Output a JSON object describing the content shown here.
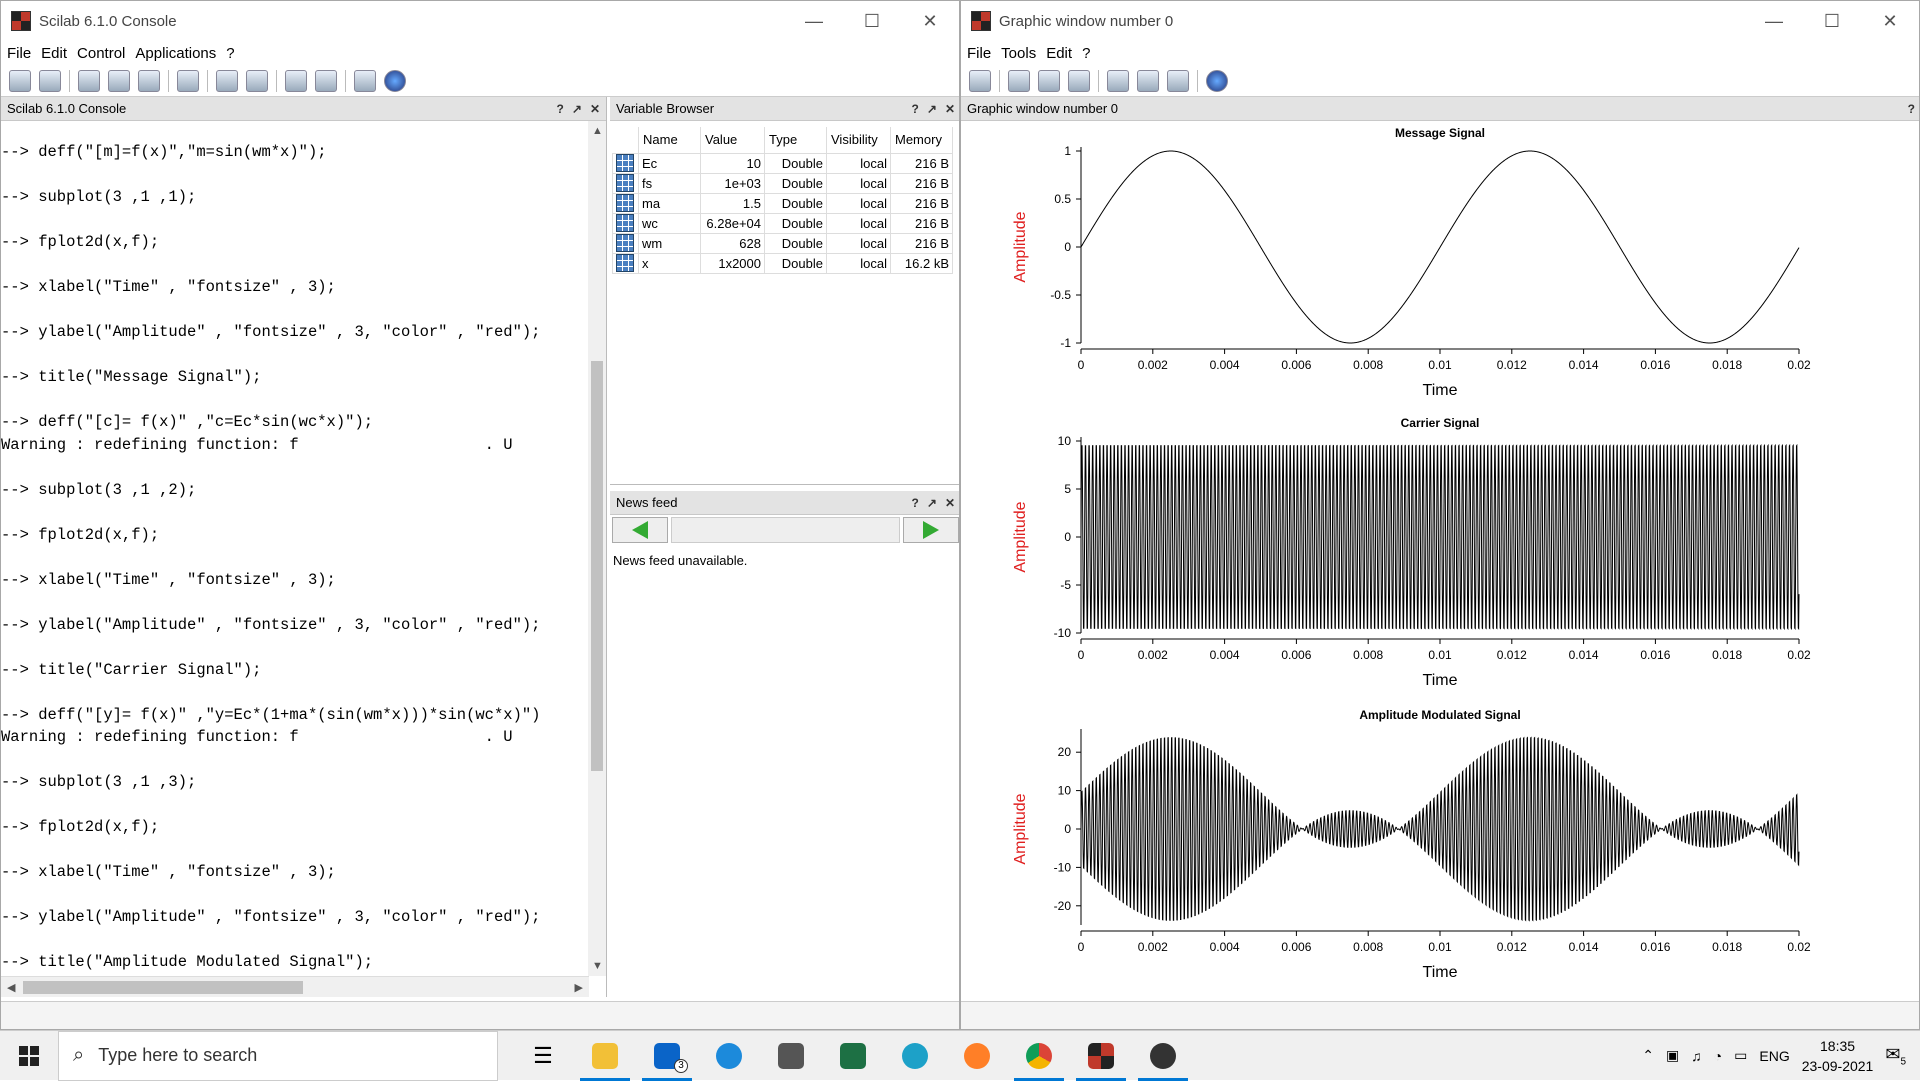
{
  "console_window": {
    "title": "Scilab 6.1.0 Console",
    "menu": [
      "File",
      "Edit",
      "Control",
      "Applications",
      "?"
    ],
    "panel_title": "Scilab 6.1.0 Console",
    "lines": [
      "--> deff(\"[m]=f(x)\",\"m=sin(wm*x)\");",
      "",
      "--> subplot(3 ,1 ,1);",
      "",
      "--> fplot2d(x,f);",
      "",
      "--> xlabel(\"Time\" , \"fontsize\" , 3);",
      "",
      "--> ylabel(\"Amplitude\" , \"fontsize\" , 3, \"color\" , \"red\");",
      "",
      "--> title(\"Message Signal\");",
      "",
      "--> deff(\"[c]= f(x)\" ,\"c=Ec*sin(wc*x)\");",
      "Warning : redefining function: f                    . U",
      "",
      "--> subplot(3 ,1 ,2);",
      "",
      "--> fplot2d(x,f);",
      "",
      "--> xlabel(\"Time\" , \"fontsize\" , 3);",
      "",
      "--> ylabel(\"Amplitude\" , \"fontsize\" , 3, \"color\" , \"red\");",
      "",
      "--> title(\"Carrier Signal\");",
      "",
      "--> deff(\"[y]= f(x)\" ,\"y=Ec*(1+ma*(sin(wm*x)))*sin(wc*x)\")",
      "Warning : redefining function: f                    . U",
      "",
      "--> subplot(3 ,1 ,3);",
      "",
      "--> fplot2d(x,f);",
      "",
      "--> xlabel(\"Time\" , \"fontsize\" , 3);",
      "",
      "--> ylabel(\"Amplitude\" , \"fontsize\" , 3, \"color\" , \"red\");",
      "",
      "--> title(\"Amplitude Modulated Signal\");"
    ]
  },
  "variable_browser": {
    "title": "Variable Browser",
    "columns": [
      "Name",
      "Value",
      "Type",
      "Visibility",
      "Memory"
    ],
    "rows": [
      {
        "name": "Ec",
        "value": "10",
        "type": "Double",
        "visibility": "local",
        "memory": "216 B"
      },
      {
        "name": "fs",
        "value": "1e+03",
        "type": "Double",
        "visibility": "local",
        "memory": "216 B"
      },
      {
        "name": "ma",
        "value": "1.5",
        "type": "Double",
        "visibility": "local",
        "memory": "216 B"
      },
      {
        "name": "wc",
        "value": "6.28e+04",
        "type": "Double",
        "visibility": "local",
        "memory": "216 B"
      },
      {
        "name": "wm",
        "value": "628",
        "type": "Double",
        "visibility": "local",
        "memory": "216 B"
      },
      {
        "name": "x",
        "value": "1x2000",
        "type": "Double",
        "visibility": "local",
        "memory": "16.2 kB"
      }
    ]
  },
  "news_feed": {
    "title": "News feed",
    "message": "News feed unavailable."
  },
  "graphic_window": {
    "title": "Graphic window number 0",
    "menu": [
      "File",
      "Tools",
      "Edit",
      "?"
    ],
    "panel_title": "Graphic window number 0",
    "ylabel_color": "#e02020"
  },
  "chart_data": [
    {
      "type": "line",
      "title": "Message Signal",
      "xlabel": "Time",
      "ylabel": "Amplitude",
      "xlim": [
        0,
        0.02
      ],
      "ylim": [
        -1,
        1
      ],
      "xticks": [
        "0",
        "0.002",
        "0.004",
        "0.006",
        "0.008",
        "0.01",
        "0.012",
        "0.014",
        "0.016",
        "0.018",
        "0.02"
      ],
      "yticks": [
        "-1",
        "-0.5",
        "0",
        "0.5",
        "1"
      ],
      "series": [
        {
          "function": "sin(wm*x)",
          "wm": 628,
          "Ec": 10,
          "ma": 1.5,
          "wc": 62800,
          "x_min": 0,
          "x_max": 0.02,
          "n_points": 2000
        }
      ]
    },
    {
      "type": "line",
      "title": "Carrier Signal",
      "xlabel": "Time",
      "ylabel": "Amplitude",
      "xlim": [
        0,
        0.02
      ],
      "ylim": [
        -10,
        10
      ],
      "xticks": [
        "0",
        "0.002",
        "0.004",
        "0.006",
        "0.008",
        "0.01",
        "0.012",
        "0.014",
        "0.016",
        "0.018",
        "0.02"
      ],
      "yticks": [
        "-10",
        "-5",
        "0",
        "5",
        "10"
      ],
      "series": [
        {
          "function": "Ec*sin(wc*x)",
          "wm": 628,
          "Ec": 10,
          "ma": 1.5,
          "wc": 62800,
          "x_min": 0,
          "x_max": 0.02,
          "n_points": 2000
        }
      ]
    },
    {
      "type": "line",
      "title": "Amplitude Modulated Signal",
      "xlabel": "Time",
      "ylabel": "Amplitude",
      "xlim": [
        0,
        0.02
      ],
      "ylim": [
        -25,
        25
      ],
      "xticks": [
        "0",
        "0.002",
        "0.004",
        "0.006",
        "0.008",
        "0.01",
        "0.012",
        "0.014",
        "0.016",
        "0.018",
        "0.02"
      ],
      "yticks": [
        "-20",
        "-10",
        "0",
        "10",
        "20"
      ],
      "series": [
        {
          "function": "Ec*(1+ma*(sin(wm*x)))*sin(wc*x)",
          "wm": 628,
          "Ec": 10,
          "ma": 1.5,
          "wc": 62800,
          "x_min": 0,
          "x_max": 0.02,
          "n_points": 2000
        }
      ]
    }
  ],
  "taskbar": {
    "search_placeholder": "Type here to search",
    "mail_badge": "3",
    "language": "ENG",
    "time": "18:35",
    "date": "23-09-2021",
    "notification_count": "5"
  }
}
